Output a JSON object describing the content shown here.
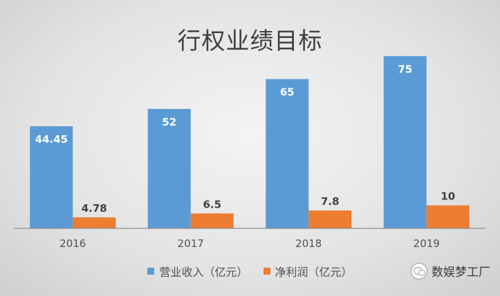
{
  "chart_data": {
    "type": "bar",
    "title": "行权业绩目标",
    "categories": [
      "2016",
      "2017",
      "2018",
      "2019"
    ],
    "series": [
      {
        "name": "营业收入（亿元）",
        "color": "#5b9bd5",
        "values": [
          44.45,
          52,
          65,
          75
        ],
        "labels": [
          "44.45",
          "52",
          "65",
          "75"
        ]
      },
      {
        "name": "净利润（亿元）",
        "color": "#ed7d31",
        "values": [
          4.78,
          6.5,
          7.8,
          10
        ],
        "labels": [
          "4.78",
          "6.5",
          "7.8",
          "10"
        ]
      }
    ],
    "ylim": [
      0,
      85
    ],
    "grid": false,
    "legend_position": "bottom"
  },
  "watermark": {
    "text": "数娱梦工厂",
    "icon": "wechat-icon"
  }
}
